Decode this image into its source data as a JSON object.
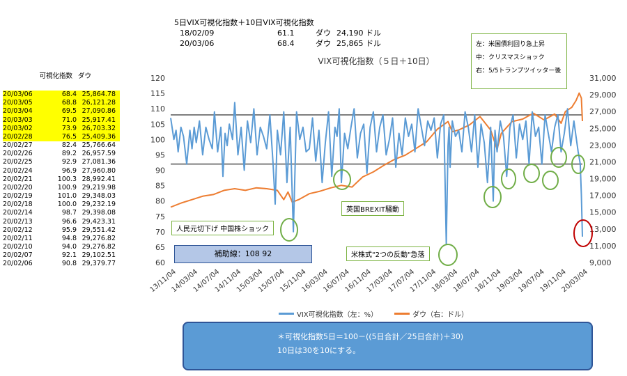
{
  "header": {
    "title": "5日VIX可視化指数＋10日VIX可視化指数",
    "rows": [
      {
        "date": "18/02/09",
        "value": "61.1",
        "label": "ダウ",
        "dow": "24,190 ドル"
      },
      {
        "date": "20/03/06",
        "value": "68.4",
        "label": "ダウ",
        "dow": "25,865 ドル"
      }
    ]
  },
  "legend_box": {
    "lines": [
      "左：米国債利回り急上昇",
      "中：クリスマスショック",
      "右：5/5トランプツイッター後"
    ]
  },
  "table": {
    "col1": "可視化指数",
    "col2": "ダウ",
    "rows": [
      {
        "date": "20/03/06",
        "v": "68.4",
        "dow": "25,864.78",
        "hl": true
      },
      {
        "date": "20/03/05",
        "v": "68.8",
        "dow": "26,121.28",
        "hl": true
      },
      {
        "date": "20/03/04",
        "v": "69.5",
        "dow": "27,090.86",
        "hl": true
      },
      {
        "date": "20/03/03",
        "v": "71.0",
        "dow": "25,917.41",
        "hl": true
      },
      {
        "date": "20/03/02",
        "v": "73.9",
        "dow": "26,703.32",
        "hl": true
      },
      {
        "date": "20/02/28",
        "v": "76.5",
        "dow": "25,409.36",
        "hl": true
      },
      {
        "date": "20/02/27",
        "v": "82.4",
        "dow": "25,766.64",
        "hl": false
      },
      {
        "date": "20/02/26",
        "v": "89.2",
        "dow": "26,957.59",
        "hl": false
      },
      {
        "date": "20/02/25",
        "v": "92.9",
        "dow": "27,081.36",
        "hl": false
      },
      {
        "date": "20/02/24",
        "v": "96.9",
        "dow": "27,960.80",
        "hl": false
      },
      {
        "date": "20/02/21",
        "v": "100.3",
        "dow": "28,992.41",
        "hl": false
      },
      {
        "date": "20/02/20",
        "v": "100.9",
        "dow": "29,219.98",
        "hl": false
      },
      {
        "date": "20/02/19",
        "v": "101.0",
        "dow": "29,348.03",
        "hl": false
      },
      {
        "date": "20/02/18",
        "v": "100.0",
        "dow": "29,232.19",
        "hl": false
      },
      {
        "date": "20/02/14",
        "v": "98.7",
        "dow": "29,398.08",
        "hl": false
      },
      {
        "date": "20/02/13",
        "v": "96.6",
        "dow": "29,423.31",
        "hl": false
      },
      {
        "date": "20/02/12",
        "v": "95.9",
        "dow": "29,551.42",
        "hl": false
      },
      {
        "date": "20/02/11",
        "v": "94.8",
        "dow": "29,276.82",
        "hl": false
      },
      {
        "date": "20/02/10",
        "v": "94.0",
        "dow": "29,276.82",
        "hl": false
      },
      {
        "date": "20/02/07",
        "v": "92.1",
        "dow": "29,102.51",
        "hl": false
      },
      {
        "date": "20/02/06",
        "v": "90.8",
        "dow": "29,379.77",
        "hl": false
      }
    ]
  },
  "annotations": {
    "renminbi": "人民元切下げ 中国株ショック",
    "brexit": "英国BREXIT騒動",
    "us_stock": "米株式\"2つの反動\"急落",
    "hojo": "補助線：108 92"
  },
  "formula": {
    "line1": "＊可視化指数5日＝100－((5日合計／25日合計)＋30)",
    "line2": "10日は30を10にする。"
  },
  "colors": {
    "vix": "#5b9bd5",
    "dow": "#ed7d31",
    "hline": "#7f7f7f",
    "circle_green": "#70ad47",
    "circle_red": "#c00000"
  },
  "chart_data": {
    "type": "line",
    "title": "VIX可視化指数（５日＋10日）",
    "x_tick_labels": [
      "13/11/04",
      "14/03/04",
      "14/07/04",
      "14/11/04",
      "15/03/04",
      "15/07/04",
      "15/11/04",
      "16/03/04",
      "16/07/04",
      "16/11/04",
      "17/03/04",
      "17/07/04",
      "17/11/04",
      "18/03/04",
      "18/07/04",
      "18/11/04",
      "19/03/04",
      "19/07/04",
      "19/11/04",
      "20/03/04"
    ],
    "y_left": {
      "min": 60,
      "max": 120,
      "ticks": [
        60,
        65,
        70,
        75,
        80,
        85,
        90,
        95,
        100,
        105,
        110,
        115,
        120
      ]
    },
    "y_right": {
      "min": 9000,
      "max": 31000,
      "ticks": [
        "9,000",
        "11,000",
        "13,000",
        "15,000",
        "17,000",
        "19,000",
        "21,000",
        "23,000",
        "25,000",
        "27,000",
        "29,000",
        "31,000"
      ]
    },
    "reference_lines": [
      108,
      92
    ],
    "series": [
      {
        "name": "VIX可視化指数（左：%）",
        "axis": "left",
        "x": [
          0,
          0.15,
          0.25,
          0.35,
          0.48,
          0.6,
          0.75,
          0.9,
          1.0,
          1.1,
          1.2,
          1.35,
          1.5,
          1.65,
          1.8,
          1.95,
          2.05,
          2.2,
          2.35,
          2.45,
          2.55,
          2.65,
          2.75,
          2.9,
          3.0,
          3.15,
          3.3,
          3.45,
          3.6,
          3.75,
          3.9,
          4.05,
          4.2,
          4.35,
          4.5,
          4.65,
          4.8,
          4.9,
          5.0,
          5.15,
          5.3,
          5.45,
          5.6,
          5.75,
          5.9,
          6.05,
          6.2,
          6.35,
          6.5,
          6.65,
          6.8,
          6.95,
          7.1,
          7.25,
          7.4,
          7.55,
          7.7,
          7.8,
          7.9,
          8.0,
          8.15,
          8.3,
          8.45,
          8.6,
          8.75,
          8.9,
          9.05,
          9.2,
          9.35,
          9.5,
          9.65,
          9.8,
          9.95,
          10.1,
          10.25,
          10.4,
          10.55,
          10.7,
          10.85,
          11.0,
          11.15,
          11.3,
          11.45,
          11.6,
          11.75,
          11.9,
          12.05,
          12.2,
          12.35,
          12.5,
          12.65,
          12.8,
          12.92,
          13.0,
          13.05,
          13.1,
          13.2,
          13.35,
          13.5,
          13.65,
          13.8,
          13.95,
          14.1,
          14.25,
          14.4,
          14.55,
          14.7,
          14.85,
          15.0,
          15.12,
          15.2,
          15.3,
          15.45,
          15.6,
          15.75,
          15.9,
          16.05,
          16.2,
          16.35,
          16.5,
          16.65,
          16.8,
          16.95,
          17.1,
          17.25,
          17.4,
          17.55,
          17.7,
          17.85,
          18.0,
          18.15,
          18.3,
          18.45,
          18.6,
          18.75,
          18.9,
          19.0,
          19.1,
          19.2,
          19.25,
          19.3
        ],
        "values": [
          107,
          100,
          103,
          96,
          104,
          101,
          92,
          103,
          97,
          104,
          99,
          106,
          95,
          104,
          100,
          97,
          109,
          96,
          104,
          88,
          102,
          98,
          105,
          100,
          112,
          95,
          104,
          90,
          106,
          99,
          110,
          95,
          104,
          101,
          97,
          108,
          92,
          79,
          103,
          95,
          109,
          86,
          104,
          70,
          109,
          100,
          104,
          96,
          97,
          107,
          93,
          103,
          86,
          99,
          109,
          88,
          104,
          101,
          110,
          86,
          102,
          97,
          104,
          110,
          94,
          102,
          105,
          89,
          104,
          109,
          96,
          104,
          108,
          95,
          100,
          107,
          91,
          102,
          95,
          107,
          101,
          105,
          96,
          110,
          104,
          98,
          106,
          103,
          107,
          94,
          105,
          108,
          66,
          98,
          104,
          91,
          106,
          101,
          103,
          96,
          109,
          104,
          96,
          108,
          91,
          105,
          99,
          86,
          104,
          80,
          103,
          96,
          106,
          101,
          88,
          104,
          108,
          94,
          105,
          100,
          106,
          92,
          109,
          101,
          104,
          92,
          108,
          102,
          96,
          104,
          108,
          96,
          102,
          110,
          98,
          106,
          101,
          96,
          92,
          82,
          68.4
        ]
      },
      {
        "name": "ダウ（右：ドル）",
        "axis": "right",
        "x": [
          0,
          0.5,
          1,
          1.5,
          2,
          2.5,
          3,
          3.5,
          4,
          4.5,
          5,
          5.3,
          5.5,
          5.7,
          6,
          6.5,
          7,
          7.5,
          8,
          8.5,
          9,
          9.5,
          10,
          10.5,
          11,
          11.5,
          12,
          12.5,
          13,
          13.2,
          13.5,
          14,
          14.5,
          15,
          15.3,
          15.5,
          16,
          16.5,
          17,
          17.5,
          18,
          18.3,
          18.5,
          18.8,
          19,
          19.15,
          19.25,
          19.3
        ],
        "values": [
          15600,
          16100,
          16500,
          16900,
          17100,
          17600,
          17800,
          17600,
          17900,
          17800,
          17600,
          16500,
          17400,
          16200,
          16500,
          17200,
          17500,
          17900,
          18200,
          18000,
          19200,
          19800,
          20600,
          21300,
          21800,
          22600,
          23400,
          24900,
          25800,
          24600,
          24800,
          25400,
          26400,
          24800,
          22500,
          24400,
          25800,
          26100,
          26800,
          26000,
          26700,
          25600,
          27000,
          27500,
          28300,
          29200,
          28600,
          25864.78
        ]
      }
    ]
  }
}
